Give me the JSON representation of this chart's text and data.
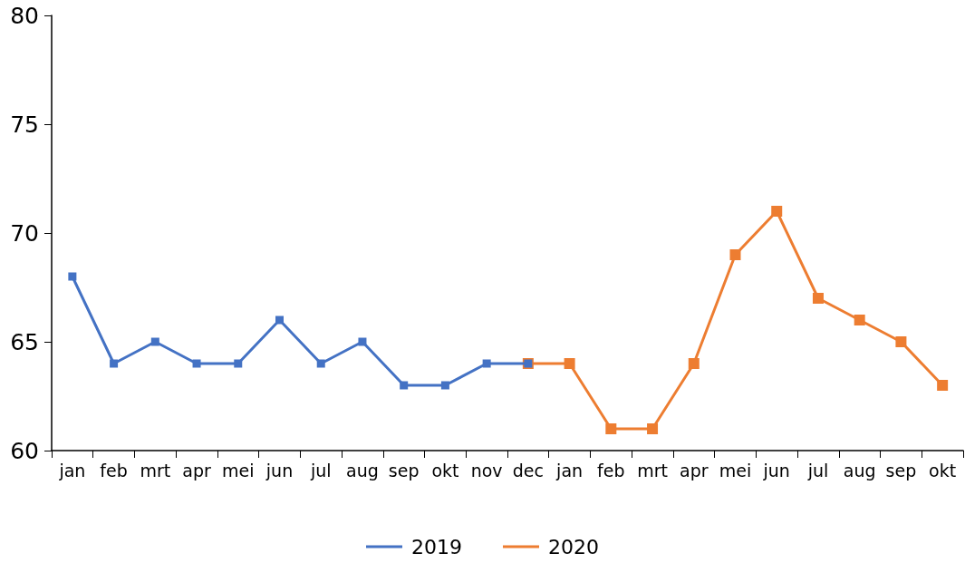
{
  "chart_data": {
    "type": "line",
    "categories": [
      "jan",
      "feb",
      "mrt",
      "apr",
      "mei",
      "jun",
      "jul",
      "aug",
      "sep",
      "okt",
      "nov",
      "dec",
      "jan",
      "feb",
      "mrt",
      "apr",
      "mei",
      "jun",
      "jul",
      "aug",
      "sep",
      "okt"
    ],
    "series": [
      {
        "name": "2019",
        "color": "#4472c4",
        "values": [
          68,
          64,
          65,
          64,
          64,
          66,
          64,
          65,
          63,
          63,
          64,
          64,
          null,
          null,
          null,
          null,
          null,
          null,
          null,
          null,
          null,
          null
        ]
      },
      {
        "name": "2020",
        "color": "#ed7d31",
        "values": [
          null,
          null,
          null,
          null,
          null,
          null,
          null,
          null,
          null,
          null,
          null,
          64,
          64,
          61,
          61,
          64,
          69,
          71,
          67,
          66,
          65,
          63
        ]
      }
    ],
    "ylim": [
      60,
      80
    ],
    "yticks": [
      60,
      65,
      70,
      75,
      80
    ],
    "grid": false,
    "legend": "bottom",
    "marker": "square",
    "line_style": "solid"
  }
}
